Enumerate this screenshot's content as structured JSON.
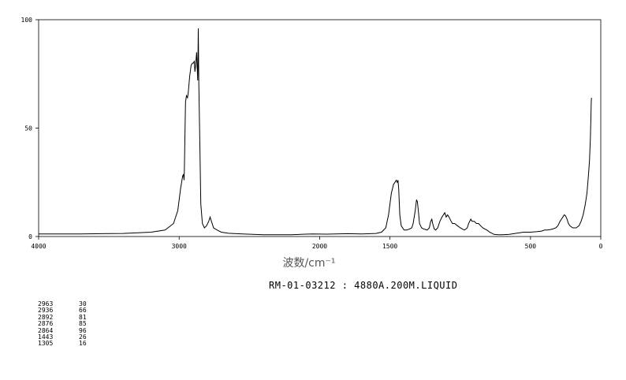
{
  "chart_data": {
    "type": "line",
    "xlabel": "波数/cm⁻¹",
    "xlim": [
      4000,
      0
    ],
    "ylim": [
      0,
      100
    ],
    "x_ticks": [
      {
        "value": 4000,
        "label": "4000"
      },
      {
        "value": 3000,
        "label": "3000"
      },
      {
        "value": 2000,
        "label": "2000"
      },
      {
        "value": 1500,
        "label": "1500"
      },
      {
        "value": 500,
        "label": "500"
      },
      {
        "value": 0,
        "label": "0"
      }
    ],
    "y_ticks": [
      {
        "value": 100,
        "label": "100"
      },
      {
        "value": 50,
        "label": "50"
      },
      {
        "value": 0,
        "label": "0"
      }
    ],
    "grid": false,
    "line_color": "#000000",
    "points": [
      [
        4000,
        1.2
      ],
      [
        3700,
        1.2
      ],
      [
        3400,
        1.4
      ],
      [
        3200,
        2
      ],
      [
        3100,
        3
      ],
      [
        3040,
        6
      ],
      [
        3010,
        12
      ],
      [
        2990,
        22
      ],
      [
        2975,
        28
      ],
      [
        2970,
        28.5
      ],
      [
        2965,
        26
      ],
      [
        2963,
        30
      ],
      [
        2955,
        62
      ],
      [
        2948,
        65
      ],
      [
        2941,
        64
      ],
      [
        2936,
        66
      ],
      [
        2925,
        74
      ],
      [
        2915,
        79
      ],
      [
        2905,
        80
      ],
      [
        2898,
        80
      ],
      [
        2892,
        81
      ],
      [
        2888,
        76
      ],
      [
        2884,
        78
      ],
      [
        2876,
        85
      ],
      [
        2872,
        78
      ],
      [
        2868,
        72
      ],
      [
        2864,
        96
      ],
      [
        2860,
        70
      ],
      [
        2852,
        40
      ],
      [
        2846,
        15
      ],
      [
        2835,
        6
      ],
      [
        2820,
        4
      ],
      [
        2805,
        5
      ],
      [
        2790,
        7
      ],
      [
        2780,
        9
      ],
      [
        2770,
        7
      ],
      [
        2755,
        4
      ],
      [
        2730,
        3
      ],
      [
        2700,
        2
      ],
      [
        2650,
        1.5
      ],
      [
        2550,
        1.2
      ],
      [
        2400,
        0.8
      ],
      [
        2200,
        0.8
      ],
      [
        2100,
        1.1
      ],
      [
        2050,
        1.2
      ],
      [
        1950,
        1.1
      ],
      [
        1800,
        1.3
      ],
      [
        1700,
        1.2
      ],
      [
        1600,
        1.4
      ],
      [
        1560,
        2
      ],
      [
        1530,
        4
      ],
      [
        1510,
        10
      ],
      [
        1490,
        20
      ],
      [
        1475,
        24
      ],
      [
        1465,
        25
      ],
      [
        1455,
        26
      ],
      [
        1448,
        25
      ],
      [
        1443,
        26
      ],
      [
        1438,
        22
      ],
      [
        1430,
        10
      ],
      [
        1420,
        5
      ],
      [
        1400,
        3
      ],
      [
        1380,
        3
      ],
      [
        1360,
        3.5
      ],
      [
        1345,
        4
      ],
      [
        1335,
        6
      ],
      [
        1320,
        12
      ],
      [
        1311,
        17
      ],
      [
        1305,
        16
      ],
      [
        1298,
        12
      ],
      [
        1290,
        6
      ],
      [
        1275,
        4
      ],
      [
        1260,
        3.5
      ],
      [
        1235,
        3
      ],
      [
        1220,
        4
      ],
      [
        1210,
        7
      ],
      [
        1202,
        8
      ],
      [
        1196,
        6
      ],
      [
        1185,
        3.5
      ],
      [
        1175,
        3
      ],
      [
        1160,
        4
      ],
      [
        1145,
        7
      ],
      [
        1130,
        9
      ],
      [
        1120,
        10
      ],
      [
        1110,
        11
      ],
      [
        1100,
        9
      ],
      [
        1090,
        10
      ],
      [
        1080,
        9
      ],
      [
        1065,
        7
      ],
      [
        1055,
        6
      ],
      [
        1040,
        6
      ],
      [
        1020,
        5
      ],
      [
        1000,
        4
      ],
      [
        985,
        3.5
      ],
      [
        970,
        3
      ],
      [
        950,
        4
      ],
      [
        940,
        6
      ],
      [
        925,
        8
      ],
      [
        915,
        7
      ],
      [
        900,
        7
      ],
      [
        885,
        6
      ],
      [
        870,
        6
      ],
      [
        855,
        5
      ],
      [
        840,
        4
      ],
      [
        825,
        3.5
      ],
      [
        810,
        3
      ],
      [
        790,
        2
      ],
      [
        760,
        1
      ],
      [
        730,
        0.8
      ],
      [
        700,
        0.8
      ],
      [
        650,
        1
      ],
      [
        600,
        1.5
      ],
      [
        550,
        2
      ],
      [
        500,
        2
      ],
      [
        450,
        2.3
      ],
      [
        420,
        2.5
      ],
      [
        400,
        3
      ],
      [
        380,
        3
      ],
      [
        360,
        3.2
      ],
      [
        340,
        3.5
      ],
      [
        320,
        4
      ],
      [
        305,
        5
      ],
      [
        290,
        7
      ],
      [
        280,
        8
      ],
      [
        270,
        9
      ],
      [
        260,
        10
      ],
      [
        250,
        9.5
      ],
      [
        240,
        8
      ],
      [
        230,
        6
      ],
      [
        220,
        5
      ],
      [
        200,
        4
      ],
      [
        175,
        4
      ],
      [
        155,
        5
      ],
      [
        140,
        7
      ],
      [
        125,
        10
      ],
      [
        110,
        15
      ],
      [
        98,
        20
      ],
      [
        88,
        28
      ],
      [
        80,
        35
      ],
      [
        74,
        45
      ],
      [
        70,
        55
      ],
      [
        68,
        62
      ],
      [
        66,
        64
      ]
    ],
    "peak_table": [
      {
        "wavenumber": "2963",
        "intensity": "30"
      },
      {
        "wavenumber": "2936",
        "intensity": "66"
      },
      {
        "wavenumber": "2892",
        "intensity": "81"
      },
      {
        "wavenumber": "2876",
        "intensity": "85"
      },
      {
        "wavenumber": "2864",
        "intensity": "96"
      },
      {
        "wavenumber": "1443",
        "intensity": "26"
      },
      {
        "wavenumber": "1305",
        "intensity": "16"
      }
    ]
  },
  "caption": "RM-01-03212 : 4880A.200M.LIQUID"
}
